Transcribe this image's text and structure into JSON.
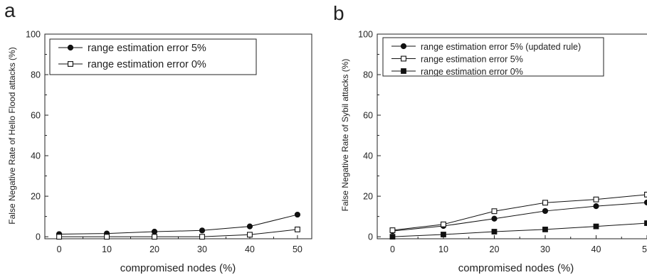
{
  "chart_data": [
    {
      "panel_label": "a",
      "type": "line",
      "xlabel": "compromised nodes (%)",
      "ylabel": "False Negative Rate of Hello Flood attacks (%)",
      "xlim": [
        -3,
        53
      ],
      "ylim": [
        -1,
        100
      ],
      "xticks": [
        0,
        10,
        20,
        30,
        40,
        50
      ],
      "yticks": [
        0,
        20,
        40,
        60,
        80,
        100
      ],
      "legend_position": "top-left",
      "x": [
        0,
        10,
        20,
        30,
        40,
        50
      ],
      "series": [
        {
          "name": "range estimation error 5%",
          "marker": "filled-circle",
          "values": [
            1.3,
            1.6,
            2.5,
            3.1,
            5.1,
            10.9
          ]
        },
        {
          "name": "range estimation error 0%",
          "marker": "open-square",
          "values": [
            0,
            0,
            0,
            0,
            1.0,
            3.6
          ]
        }
      ]
    },
    {
      "panel_label": "b",
      "type": "line",
      "xlabel": "compromised nodes (%)",
      "ylabel": "False Negative Rate of Sybil attacks (%)",
      "xlim": [
        -3,
        50
      ],
      "ylim": [
        -1,
        100
      ],
      "xticks": [
        0,
        10,
        20,
        30,
        40,
        50
      ],
      "yticks": [
        0,
        20,
        40,
        60,
        80,
        100
      ],
      "legend_position": "top-left",
      "x": [
        0,
        10,
        20,
        30,
        40,
        50
      ],
      "series": [
        {
          "name": "range estimation error 5% (updated rule)",
          "marker": "filled-circle",
          "values": [
            2.8,
            5.3,
            8.9,
            12.7,
            15.1,
            16.9
          ]
        },
        {
          "name": "range estimation error 5%",
          "marker": "open-square",
          "values": [
            3.2,
            6.1,
            12.6,
            16.8,
            18.4,
            20.8
          ]
        },
        {
          "name": "range estimation error 0%",
          "marker": "filled-square",
          "values": [
            0,
            1.1,
            2.5,
            3.6,
            5.1,
            6.7
          ]
        }
      ]
    }
  ]
}
